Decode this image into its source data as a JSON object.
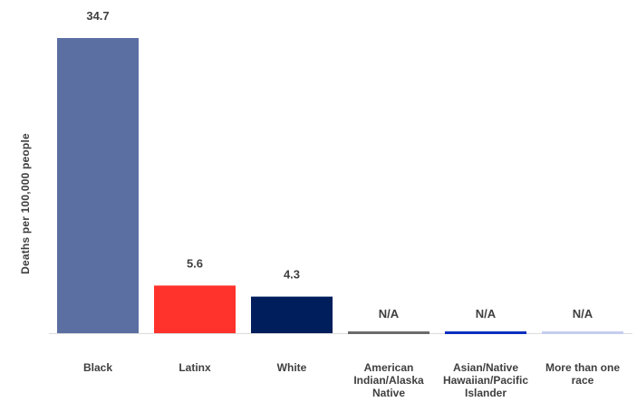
{
  "chart_data": {
    "type": "bar",
    "ylabel": "Deaths per 100,000 people",
    "categories": [
      "Black",
      "Latinx",
      "White",
      "American Indian/Alaska Native",
      "Asian/Native Hawaiian/Pacific Islander",
      "More than one race"
    ],
    "category_label_lines": [
      [
        "Black"
      ],
      [
        "Latinx"
      ],
      [
        "White"
      ],
      [
        "American",
        "Indian/Alaska",
        "Native"
      ],
      [
        "Asian/Native",
        "Hawaiian/Pacific",
        "Islander"
      ],
      [
        "More than one",
        "race"
      ]
    ],
    "values": [
      34.7,
      5.6,
      4.3,
      null,
      null,
      null
    ],
    "data_labels": [
      "34.7",
      "5.6",
      "4.3",
      "N/A",
      "N/A",
      "N/A"
    ],
    "colors": [
      "#5b6fa3",
      "#ff332c",
      "#001d5c",
      "#6b6b6b",
      "#0b2fbf",
      "#c5cdf0"
    ],
    "ylim": [
      0,
      34.7
    ],
    "grid": false,
    "legend": "none"
  }
}
